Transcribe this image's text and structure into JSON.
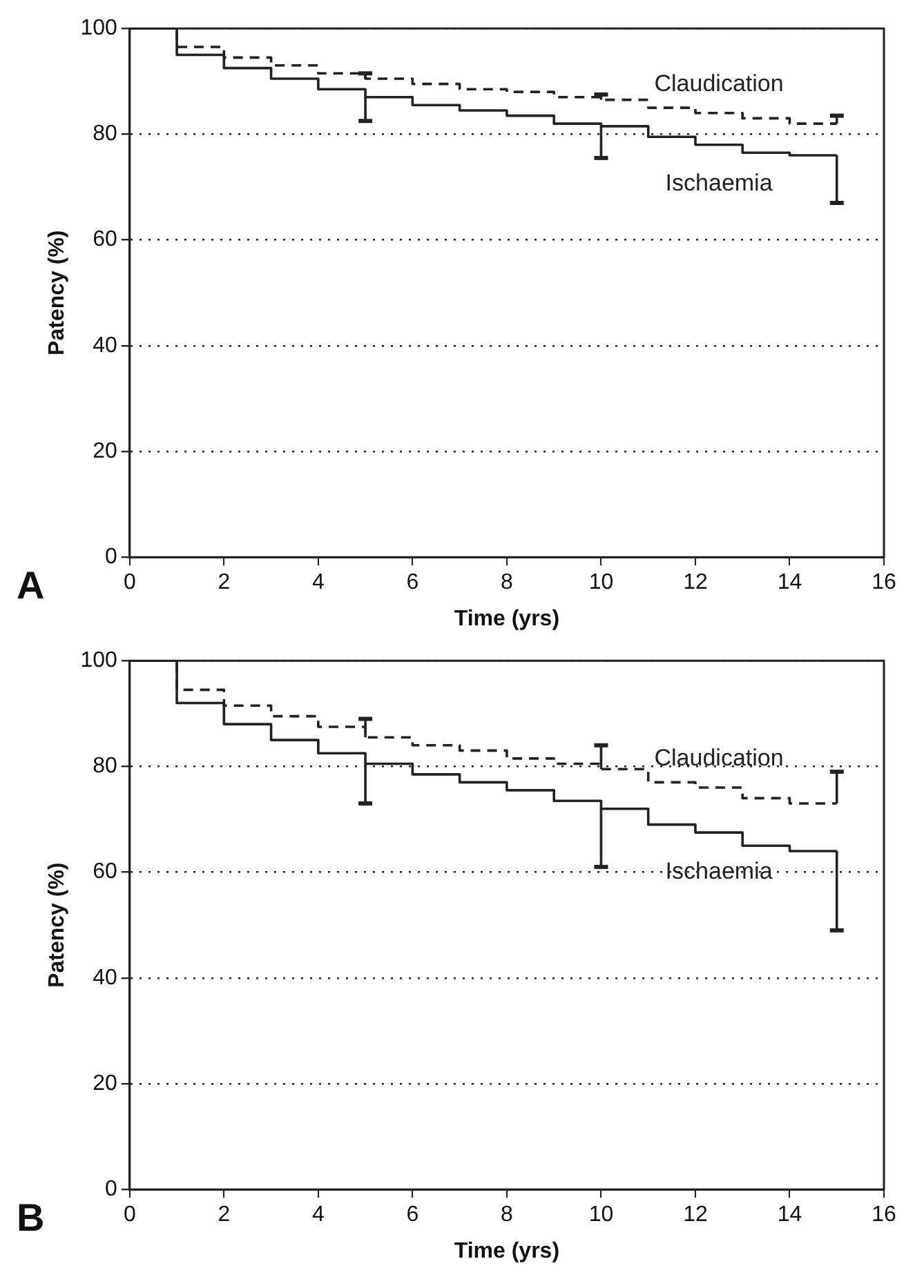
{
  "chart_data": [
    {
      "type": "step",
      "title": "A",
      "xlabel": "Time (yrs)",
      "ylabel": "Patency (%)",
      "x": [
        0,
        1,
        2,
        3,
        4,
        5,
        6,
        7,
        8,
        9,
        10,
        11,
        12,
        13,
        14,
        15
      ],
      "series": [
        {
          "name": "Claudication",
          "color": "#222222",
          "line_style": "dashed",
          "values": [
            100,
            96.5,
            94.5,
            93,
            91.5,
            90.5,
            89.5,
            88.5,
            88,
            87,
            86.5,
            85,
            84,
            83,
            82,
            82
          ],
          "errors": [
            null,
            null,
            null,
            null,
            null,
            [
              90.5,
              91.5
            ],
            null,
            null,
            null,
            null,
            [
              86.5,
              87.5
            ],
            null,
            null,
            null,
            null,
            [
              82,
              83.5
            ]
          ]
        },
        {
          "name": "Ischaemia",
          "color": "#222222",
          "line_style": "solid",
          "values": [
            100,
            95,
            92.5,
            90.5,
            88.5,
            87,
            85.5,
            84.5,
            83.5,
            82,
            81.5,
            79.5,
            78,
            76.5,
            76,
            76
          ],
          "errors": [
            null,
            null,
            null,
            null,
            null,
            [
              82.5,
              87
            ],
            null,
            null,
            null,
            null,
            [
              75.5,
              81.5
            ],
            null,
            null,
            null,
            null,
            [
              67,
              76
            ]
          ]
        }
      ],
      "xlim": [
        0,
        16
      ],
      "xticks": [
        0,
        2,
        4,
        6,
        8,
        10,
        12,
        14,
        16
      ],
      "ylim": [
        0,
        100
      ],
      "yticks": [
        0,
        20,
        40,
        60,
        80,
        100
      ],
      "grid": "y",
      "legend": false
    },
    {
      "type": "step",
      "title": "B",
      "xlabel": "Time (yrs)",
      "ylabel": "Patency (%)",
      "x": [
        0,
        1,
        2,
        3,
        4,
        5,
        6,
        7,
        8,
        9,
        10,
        11,
        12,
        13,
        14,
        15
      ],
      "series": [
        {
          "name": "Claudication",
          "color": "#222222",
          "line_style": "dashed",
          "values": [
            100,
            94.5,
            91.5,
            89.5,
            87.5,
            85.5,
            84,
            83,
            81.5,
            80.5,
            79.5,
            77,
            76,
            74,
            73,
            73
          ],
          "errors": [
            null,
            null,
            null,
            null,
            null,
            [
              85.5,
              89
            ],
            null,
            null,
            null,
            null,
            [
              79.5,
              84
            ],
            null,
            null,
            null,
            null,
            [
              73,
              79
            ]
          ]
        },
        {
          "name": "Ischaemia",
          "color": "#222222",
          "line_style": "solid",
          "values": [
            100,
            92,
            88,
            85,
            82.5,
            80.5,
            78.5,
            77,
            75.5,
            73.5,
            72,
            69,
            67.5,
            65,
            64,
            64
          ],
          "errors": [
            null,
            null,
            null,
            null,
            null,
            [
              73,
              80.5
            ],
            null,
            null,
            null,
            null,
            [
              61,
              72
            ],
            null,
            null,
            null,
            null,
            [
              49,
              64
            ]
          ]
        }
      ],
      "xlim": [
        0,
        16
      ],
      "xticks": [
        0,
        2,
        4,
        6,
        8,
        10,
        12,
        14,
        16
      ],
      "ylim": [
        0,
        100
      ],
      "yticks": [
        0,
        20,
        40,
        60,
        80,
        100
      ],
      "grid": "y",
      "legend": false
    }
  ]
}
